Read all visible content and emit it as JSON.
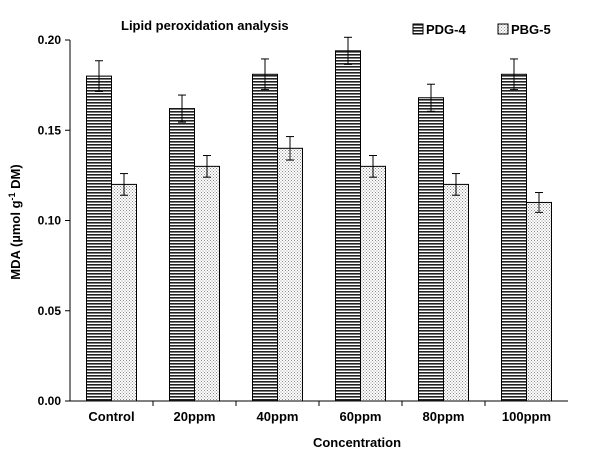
{
  "chart_data": {
    "type": "bar",
    "title": "Lipid peroxidation analysis",
    "xlabel": "Concentration",
    "ylabel_main": "MDA (µmol g",
    "ylabel_sup": "-1",
    "ylabel_tail": " DM)",
    "ylim": [
      0,
      0.2
    ],
    "yticks": [
      "0.00",
      "0.05",
      "0.10",
      "0.15",
      "0.20"
    ],
    "ytick_values": [
      0,
      0.05,
      0.1,
      0.15,
      0.2
    ],
    "grid": false,
    "legend_position": "top-right",
    "categories": [
      "Control",
      "20ppm",
      "40ppm",
      "60ppm",
      "80ppm",
      "100ppm"
    ],
    "series": [
      {
        "name": "PDG-4",
        "pattern": "horizontal-lines",
        "values": [
          0.18,
          0.162,
          0.181,
          0.194,
          0.168,
          0.181
        ],
        "errors": [
          0.0085,
          0.0075,
          0.0085,
          0.0075,
          0.0075,
          0.0085
        ]
      },
      {
        "name": "PBG-5",
        "pattern": "dots",
        "values": [
          0.12,
          0.13,
          0.14,
          0.13,
          0.12,
          0.11
        ],
        "errors": [
          0.006,
          0.006,
          0.0065,
          0.006,
          0.006,
          0.0055
        ]
      }
    ]
  }
}
